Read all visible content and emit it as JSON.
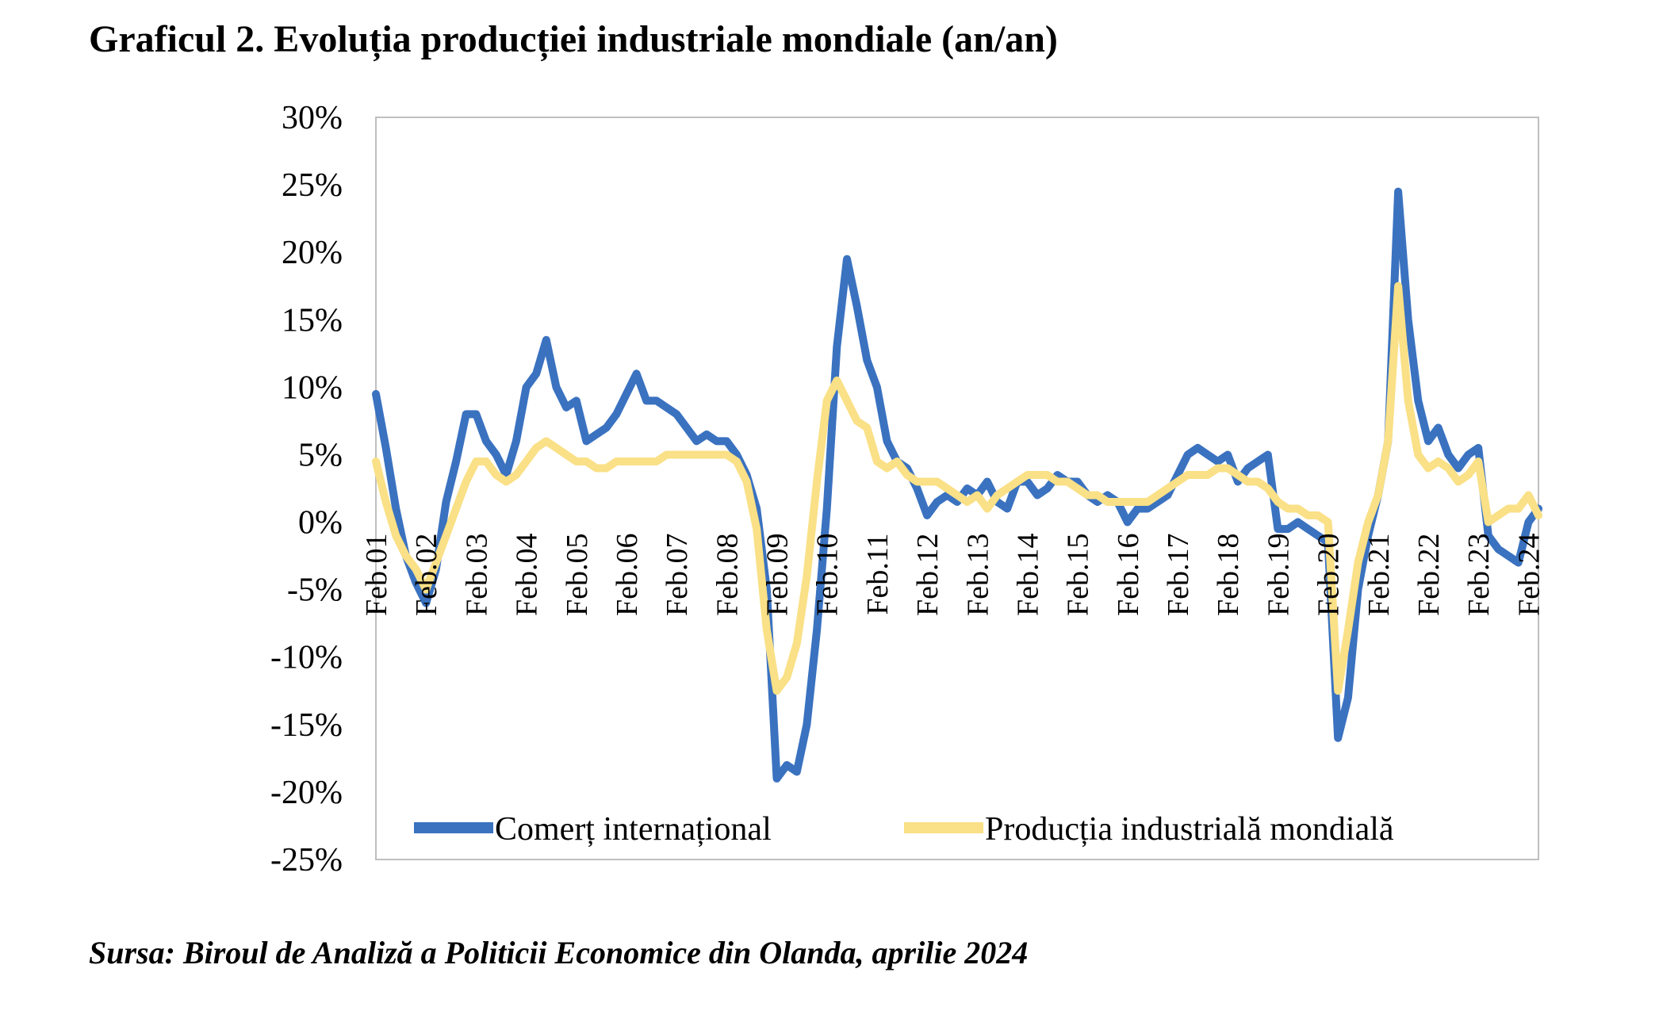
{
  "title": "Graficul 2. Evoluția producției industriale mondiale (an/an)",
  "source": "Sursa: Biroul de Analiză a Politicii Economice din Olanda, aprilie 2024",
  "colors": {
    "series1": "#3A72C0",
    "series2": "#FAE086",
    "frame": "#BFBFBF"
  },
  "chart_data": {
    "type": "line",
    "title": "",
    "xlabel": "",
    "ylabel": "",
    "ylim": [
      -25,
      30
    ],
    "y_ticks": [
      30,
      25,
      20,
      15,
      10,
      5,
      0,
      -5,
      -10,
      -15,
      -20,
      -25
    ],
    "y_tick_labels": [
      "30%",
      "25%",
      "20%",
      "15%",
      "10%",
      "5%",
      "0%",
      "-5%",
      "-10%",
      "-15%",
      "-20%",
      "-25%"
    ],
    "x_tick_labels": [
      "Feb.01",
      "Feb.02",
      "Feb.03",
      "Feb.04",
      "Feb.05",
      "Feb.06",
      "Feb.07",
      "Feb.08",
      "Feb.09",
      "Feb.10",
      "Feb.11",
      "Feb.12",
      "Feb.13",
      "Feb.14",
      "Feb.15",
      "Feb.16",
      "Feb.17",
      "Feb.18",
      "Feb.19",
      "Feb.20",
      "Feb.21",
      "Feb.22",
      "Feb.23",
      "Feb.24"
    ],
    "grid": false,
    "legend": "bottom-inside",
    "series": [
      {
        "name": "Comerț internațional",
        "points": [
          [
            2001.0,
            9.5
          ],
          [
            2001.2,
            5.5
          ],
          [
            2001.4,
            1
          ],
          [
            2001.6,
            -2.5
          ],
          [
            2001.8,
            -4.5
          ],
          [
            2002.0,
            -6
          ],
          [
            2002.2,
            -3.5
          ],
          [
            2002.4,
            1.5
          ],
          [
            2002.6,
            4.5
          ],
          [
            2002.8,
            8
          ],
          [
            2003.0,
            8
          ],
          [
            2003.2,
            6
          ],
          [
            2003.4,
            5
          ],
          [
            2003.6,
            3.5
          ],
          [
            2003.8,
            6
          ],
          [
            2004.0,
            10
          ],
          [
            2004.2,
            11
          ],
          [
            2004.4,
            13.5
          ],
          [
            2004.6,
            10
          ],
          [
            2004.8,
            8.5
          ],
          [
            2005.0,
            9
          ],
          [
            2005.2,
            6
          ],
          [
            2005.4,
            6.5
          ],
          [
            2005.6,
            7
          ],
          [
            2005.8,
            8
          ],
          [
            2006.0,
            9.5
          ],
          [
            2006.2,
            11
          ],
          [
            2006.4,
            9
          ],
          [
            2006.6,
            9
          ],
          [
            2006.8,
            8.5
          ],
          [
            2007.0,
            8
          ],
          [
            2007.2,
            7
          ],
          [
            2007.4,
            6
          ],
          [
            2007.6,
            6.5
          ],
          [
            2007.8,
            6
          ],
          [
            2008.0,
            6
          ],
          [
            2008.2,
            5
          ],
          [
            2008.4,
            3.5
          ],
          [
            2008.6,
            1
          ],
          [
            2008.8,
            -5
          ],
          [
            2009.0,
            -19
          ],
          [
            2009.2,
            -18
          ],
          [
            2009.4,
            -18.5
          ],
          [
            2009.6,
            -15
          ],
          [
            2009.8,
            -8
          ],
          [
            2010.0,
            1
          ],
          [
            2010.2,
            13
          ],
          [
            2010.4,
            19.5
          ],
          [
            2010.6,
            16
          ],
          [
            2010.8,
            12
          ],
          [
            2011.0,
            10
          ],
          [
            2011.2,
            6
          ],
          [
            2011.4,
            4.5
          ],
          [
            2011.6,
            4
          ],
          [
            2011.8,
            2.5
          ],
          [
            2012.0,
            0.5
          ],
          [
            2012.2,
            1.5
          ],
          [
            2012.4,
            2
          ],
          [
            2012.6,
            1.5
          ],
          [
            2012.8,
            2.5
          ],
          [
            2013.0,
            2
          ],
          [
            2013.2,
            3
          ],
          [
            2013.4,
            1.5
          ],
          [
            2013.6,
            1
          ],
          [
            2013.8,
            3
          ],
          [
            2014.0,
            3
          ],
          [
            2014.2,
            2
          ],
          [
            2014.4,
            2.5
          ],
          [
            2014.6,
            3.5
          ],
          [
            2014.8,
            3
          ],
          [
            2015.0,
            3
          ],
          [
            2015.2,
            2
          ],
          [
            2015.4,
            1.5
          ],
          [
            2015.6,
            2
          ],
          [
            2015.8,
            1.5
          ],
          [
            2016.0,
            0
          ],
          [
            2016.2,
            1
          ],
          [
            2016.4,
            1
          ],
          [
            2016.6,
            1.5
          ],
          [
            2016.8,
            2
          ],
          [
            2017.0,
            3.5
          ],
          [
            2017.2,
            5
          ],
          [
            2017.4,
            5.5
          ],
          [
            2017.6,
            5
          ],
          [
            2017.8,
            4.5
          ],
          [
            2018.0,
            5
          ],
          [
            2018.2,
            3
          ],
          [
            2018.4,
            4
          ],
          [
            2018.6,
            4.5
          ],
          [
            2018.8,
            5
          ],
          [
            2019.0,
            -0.5
          ],
          [
            2019.2,
            -0.5
          ],
          [
            2019.4,
            0
          ],
          [
            2019.6,
            -0.5
          ],
          [
            2019.8,
            -1
          ],
          [
            2020.0,
            -1.5
          ],
          [
            2020.2,
            -16
          ],
          [
            2020.4,
            -13
          ],
          [
            2020.6,
            -5
          ],
          [
            2020.8,
            -1
          ],
          [
            2021.0,
            2
          ],
          [
            2021.2,
            6
          ],
          [
            2021.4,
            24.5
          ],
          [
            2021.6,
            15
          ],
          [
            2021.8,
            9
          ],
          [
            2022.0,
            6
          ],
          [
            2022.2,
            7
          ],
          [
            2022.4,
            5
          ],
          [
            2022.6,
            4
          ],
          [
            2022.8,
            5
          ],
          [
            2023.0,
            5.5
          ],
          [
            2023.2,
            -1
          ],
          [
            2023.4,
            -2
          ],
          [
            2023.6,
            -2.5
          ],
          [
            2023.8,
            -3
          ],
          [
            2024.0,
            0
          ],
          [
            2024.2,
            1
          ]
        ]
      },
      {
        "name": "Producția industrială mondială",
        "points": [
          [
            2001.0,
            4.5
          ],
          [
            2001.2,
            1.5
          ],
          [
            2001.4,
            -1
          ],
          [
            2001.6,
            -2.5
          ],
          [
            2001.8,
            -3.5
          ],
          [
            2002.0,
            -5
          ],
          [
            2002.2,
            -3
          ],
          [
            2002.4,
            -1
          ],
          [
            2002.6,
            1
          ],
          [
            2002.8,
            3
          ],
          [
            2003.0,
            4.5
          ],
          [
            2003.2,
            4.5
          ],
          [
            2003.4,
            3.5
          ],
          [
            2003.6,
            3
          ],
          [
            2003.8,
            3.5
          ],
          [
            2004.0,
            4.5
          ],
          [
            2004.2,
            5.5
          ],
          [
            2004.4,
            6
          ],
          [
            2004.6,
            5.5
          ],
          [
            2004.8,
            5
          ],
          [
            2005.0,
            4.5
          ],
          [
            2005.2,
            4.5
          ],
          [
            2005.4,
            4
          ],
          [
            2005.6,
            4
          ],
          [
            2005.8,
            4.5
          ],
          [
            2006.0,
            4.5
          ],
          [
            2006.2,
            4.5
          ],
          [
            2006.4,
            4.5
          ],
          [
            2006.6,
            4.5
          ],
          [
            2006.8,
            5
          ],
          [
            2007.0,
            5
          ],
          [
            2007.2,
            5
          ],
          [
            2007.4,
            5
          ],
          [
            2007.6,
            5
          ],
          [
            2007.8,
            5
          ],
          [
            2008.0,
            5
          ],
          [
            2008.2,
            4.5
          ],
          [
            2008.4,
            3
          ],
          [
            2008.6,
            -0.5
          ],
          [
            2008.8,
            -8
          ],
          [
            2009.0,
            -12.5
          ],
          [
            2009.2,
            -11.5
          ],
          [
            2009.4,
            -9
          ],
          [
            2009.6,
            -4
          ],
          [
            2009.8,
            3
          ],
          [
            2010.0,
            9
          ],
          [
            2010.2,
            10.5
          ],
          [
            2010.4,
            9
          ],
          [
            2010.6,
            7.5
          ],
          [
            2010.8,
            7
          ],
          [
            2011.0,
            4.5
          ],
          [
            2011.2,
            4
          ],
          [
            2011.4,
            4.5
          ],
          [
            2011.6,
            3.5
          ],
          [
            2011.8,
            3
          ],
          [
            2012.0,
            3
          ],
          [
            2012.2,
            3
          ],
          [
            2012.4,
            2.5
          ],
          [
            2012.6,
            2
          ],
          [
            2012.8,
            1.5
          ],
          [
            2013.0,
            2
          ],
          [
            2013.2,
            1
          ],
          [
            2013.4,
            2
          ],
          [
            2013.6,
            2.5
          ],
          [
            2013.8,
            3
          ],
          [
            2014.0,
            3.5
          ],
          [
            2014.2,
            3.5
          ],
          [
            2014.4,
            3.5
          ],
          [
            2014.6,
            3
          ],
          [
            2014.8,
            3
          ],
          [
            2015.0,
            2.5
          ],
          [
            2015.2,
            2
          ],
          [
            2015.4,
            2
          ],
          [
            2015.6,
            1.5
          ],
          [
            2015.8,
            1.5
          ],
          [
            2016.0,
            1.5
          ],
          [
            2016.2,
            1.5
          ],
          [
            2016.4,
            1.5
          ],
          [
            2016.6,
            2
          ],
          [
            2016.8,
            2.5
          ],
          [
            2017.0,
            3
          ],
          [
            2017.2,
            3.5
          ],
          [
            2017.4,
            3.5
          ],
          [
            2017.6,
            3.5
          ],
          [
            2017.8,
            4
          ],
          [
            2018.0,
            4
          ],
          [
            2018.2,
            3.5
          ],
          [
            2018.4,
            3
          ],
          [
            2018.6,
            3
          ],
          [
            2018.8,
            2.5
          ],
          [
            2019.0,
            1.5
          ],
          [
            2019.2,
            1
          ],
          [
            2019.4,
            1
          ],
          [
            2019.6,
            0.5
          ],
          [
            2019.8,
            0.5
          ],
          [
            2020.0,
            0
          ],
          [
            2020.2,
            -12.5
          ],
          [
            2020.4,
            -8
          ],
          [
            2020.6,
            -3
          ],
          [
            2020.8,
            0
          ],
          [
            2021.0,
            2
          ],
          [
            2021.2,
            6
          ],
          [
            2021.4,
            17.5
          ],
          [
            2021.6,
            9
          ],
          [
            2021.8,
            5
          ],
          [
            2022.0,
            4
          ],
          [
            2022.2,
            4.5
          ],
          [
            2022.4,
            4
          ],
          [
            2022.6,
            3
          ],
          [
            2022.8,
            3.5
          ],
          [
            2023.0,
            4.5
          ],
          [
            2023.2,
            0
          ],
          [
            2023.4,
            0.5
          ],
          [
            2023.6,
            1
          ],
          [
            2023.8,
            1
          ],
          [
            2024.0,
            2
          ],
          [
            2024.2,
            0.5
          ]
        ]
      }
    ]
  }
}
